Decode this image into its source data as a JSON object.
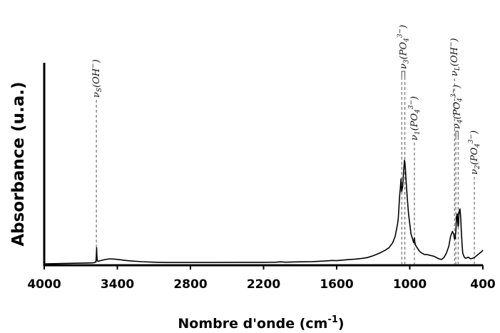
{
  "chart_data": {
    "type": "line",
    "title": "",
    "xlabel": "Nombre d'onde (cm",
    "xlabel_sup": "-1",
    "xlabel_close": ")",
    "ylabel": "Absorbance (u.a.)",
    "xlim": [
      4000,
      400
    ],
    "ylim": [
      0,
      1
    ],
    "x_reversed": true,
    "y_ticks_shown": false,
    "grid": false,
    "x_ticks": [
      {
        "value": 4000,
        "label": "4000"
      },
      {
        "value": 3400,
        "label": "3400"
      },
      {
        "value": 2800,
        "label": "2800"
      },
      {
        "value": 2200,
        "label": "2200"
      },
      {
        "value": 1600,
        "label": "1600"
      },
      {
        "value": 1000,
        "label": "1000"
      },
      {
        "value": 400,
        "label": "400"
      }
    ],
    "series": [
      {
        "color": "#000000",
        "x": [
          4000,
          3800,
          3600,
          3580,
          3575,
          3572,
          3570,
          3568,
          3565,
          3560,
          3540,
          3500,
          3460,
          3420,
          3380,
          3340,
          3300,
          3200,
          3100,
          3000,
          2800,
          2600,
          2400,
          2200,
          2100,
          2060,
          2020,
          2000,
          1900,
          1800,
          1700,
          1640,
          1600,
          1560,
          1500,
          1450,
          1400,
          1350,
          1300,
          1250,
          1200,
          1170,
          1140,
          1120,
          1110,
          1100,
          1095,
          1088,
          1082,
          1078,
          1072,
          1066,
          1058,
          1050,
          1044,
          1040,
          1036,
          1030,
          1020,
          1010,
          1000,
          990,
          968,
          962,
          958,
          950,
          940,
          920,
          900,
          880,
          860,
          840,
          820,
          800,
          780,
          760,
          740,
          720,
          700,
          680,
          665,
          650,
          640,
          633,
          628,
          622,
          616,
          610,
          606,
          603,
          600,
          597,
          593,
          588,
          582,
          576,
          570,
          565,
          560,
          550,
          540,
          520,
          500,
          470,
          440,
          410,
          400
        ],
        "y": [
          0.0,
          0.004,
          0.008,
          0.012,
          0.025,
          0.07,
          0.13,
          0.07,
          0.028,
          0.02,
          0.025,
          0.035,
          0.04,
          0.038,
          0.033,
          0.028,
          0.024,
          0.017,
          0.013,
          0.011,
          0.011,
          0.011,
          0.012,
          0.012,
          0.013,
          0.016,
          0.013,
          0.014,
          0.016,
          0.018,
          0.022,
          0.027,
          0.025,
          0.029,
          0.035,
          0.038,
          0.042,
          0.05,
          0.065,
          0.085,
          0.11,
          0.13,
          0.17,
          0.22,
          0.27,
          0.32,
          0.36,
          0.47,
          0.56,
          0.6,
          0.68,
          0.58,
          0.62,
          0.75,
          0.83,
          0.815,
          0.76,
          0.66,
          0.52,
          0.4,
          0.32,
          0.24,
          0.17,
          0.21,
          0.17,
          0.145,
          0.13,
          0.1,
          0.085,
          0.075,
          0.075,
          0.07,
          0.065,
          0.06,
          0.05,
          0.04,
          0.035,
          0.05,
          0.085,
          0.14,
          0.22,
          0.26,
          0.24,
          0.2,
          0.2,
          0.26,
          0.38,
          0.4,
          0.33,
          0.3,
          0.31,
          0.39,
          0.43,
          0.44,
          0.37,
          0.25,
          0.14,
          0.085,
          0.07,
          0.05,
          0.045,
          0.053,
          0.04,
          0.05,
          0.075,
          0.098,
          0.11
        ]
      }
    ],
    "annotations": [
      {
        "x": 3572,
        "base": "ν",
        "sub": "S",
        "rest": "(OH",
        "sup": "−",
        "tail": ")"
      },
      {
        "x": 1040,
        "x2": 1066,
        "bracket": true,
        "base": "ν",
        "sub": "3",
        "rest": "(PO",
        "sub2": "4",
        "sup": "3−",
        "tail": ")"
      },
      {
        "x": 962,
        "base": "ν",
        "sub": "1",
        "rest": "(PO",
        "sub2": "4",
        "sup": "3−",
        "tail": ")"
      },
      {
        "x": 633,
        "base": "ν",
        "sub": "L",
        "rest": "(OH",
        "sup": "−",
        "tail": ")"
      },
      {
        "x": 603,
        "x2": 622,
        "bracket": true,
        "base": "ν",
        "sub": "4",
        "rest": "(PO",
        "sub2": "4",
        "sup": "3−",
        "tail": ")"
      },
      {
        "x": 470,
        "base": "ν",
        "sub": "2",
        "rest": "(PO",
        "sub2": "4",
        "sup": "3−",
        "tail": ")"
      }
    ]
  }
}
